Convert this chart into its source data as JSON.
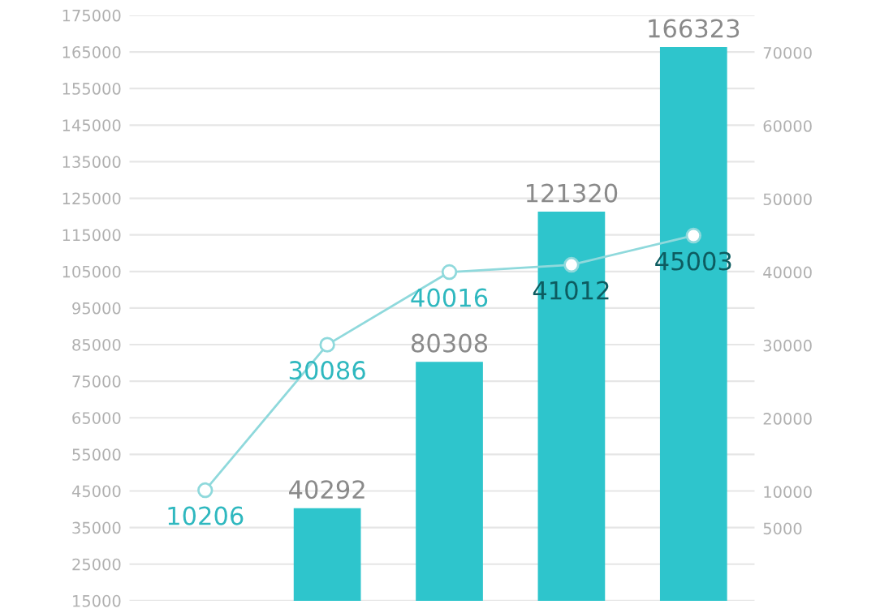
{
  "chart_data": {
    "type": "bar",
    "categories": [
      null,
      null,
      null,
      null,
      null
    ],
    "series": [
      {
        "color": "#2ec5cc",
        "values": [
          null,
          40292,
          80308,
          121320,
          166323
        ]
      },
      {
        "type": "line",
        "axis": "y2",
        "color": "#8fd9dc",
        "values": [
          10206,
          30086,
          40016,
          41012,
          45003
        ]
      }
    ],
    "ylim": [
      15000,
      175000
    ],
    "yticks": [
      15000,
      25000,
      35000,
      45000,
      55000,
      65000,
      75000,
      85000,
      95000,
      105000,
      115000,
      125000,
      135000,
      145000,
      155000,
      165000,
      175000
    ],
    "y2lim": [
      -4900,
      75100
    ],
    "y2ticks": [
      5000,
      10000,
      20000,
      30000,
      40000,
      50000,
      60000,
      70000
    ],
    "grid": "y",
    "marker": "circle",
    "line_style": "solid",
    "data_labels": true,
    "tick_labels": "y"
  }
}
